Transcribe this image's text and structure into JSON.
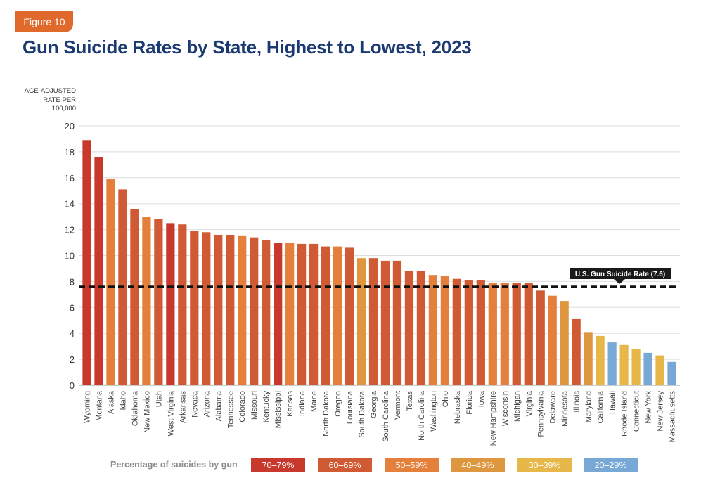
{
  "figure_label": "Figure 10",
  "chart_data": {
    "type": "bar",
    "title": "Gun Suicide Rates by State, Highest to Lowest, 2023",
    "ylabel_lines": [
      "AGE-ADJUSTED",
      "RATE PER",
      "100,000"
    ],
    "xlabel": "",
    "ylim": [
      0,
      20
    ],
    "yticks": [
      0,
      2,
      4,
      6,
      8,
      10,
      12,
      14,
      16,
      18,
      20
    ],
    "grid": true,
    "reference_line": {
      "label": "U.S. Gun Suicide Rate (7.6)",
      "value": 7.6
    },
    "categories": [
      "Wyoming",
      "Montana",
      "Alaska",
      "Idaho",
      "Oklahoma",
      "New Mexico",
      "Utah",
      "West Virginia",
      "Arkansas",
      "Nevada",
      "Arizona",
      "Alabama",
      "Tennessee",
      "Colorado",
      "Missouri",
      "Kentucky",
      "Mississippi",
      "Kansas",
      "Indiana",
      "Maine",
      "North Dakota",
      "Oregon",
      "Louisiana",
      "South Dakota",
      "Georgia",
      "South Carolina",
      "Vermont",
      "Texas",
      "North Carolina",
      "Washington",
      "Ohio",
      "Nebraska",
      "Florida",
      "Iowa",
      "New Hampshire",
      "Wisconsin",
      "Michigan",
      "Virginia",
      "Pennsylvania",
      "Delaware",
      "Minnesota",
      "Illinois",
      "Maryland",
      "California",
      "Hawaii",
      "Rhode Island",
      "Connecticut",
      "New York",
      "New Jersey",
      "Massachusetts"
    ],
    "values": [
      18.9,
      17.6,
      15.9,
      15.1,
      13.6,
      13.0,
      12.8,
      12.5,
      12.4,
      11.9,
      11.8,
      11.6,
      11.6,
      11.5,
      11.4,
      11.2,
      11.0,
      11.0,
      10.9,
      10.9,
      10.7,
      10.7,
      10.6,
      9.8,
      9.8,
      9.6,
      9.6,
      8.8,
      8.8,
      8.5,
      8.4,
      8.2,
      8.1,
      8.1,
      7.9,
      7.9,
      7.9,
      7.9,
      7.3,
      6.9,
      6.5,
      5.1,
      4.1,
      3.8,
      3.3,
      3.1,
      2.8,
      2.5,
      2.3,
      1.8
    ],
    "groups": [
      0,
      0,
      2,
      1,
      1,
      2,
      1,
      0,
      1,
      1,
      1,
      1,
      1,
      2,
      1,
      1,
      0,
      2,
      1,
      1,
      1,
      2,
      1,
      3,
      1,
      1,
      1,
      1,
      1,
      2,
      2,
      1,
      1,
      1,
      2,
      2,
      1,
      1,
      1,
      2,
      3,
      1,
      3,
      4,
      5,
      4,
      4,
      5,
      4,
      5
    ],
    "legend_title": "Percentage of suicides by gun",
    "legend": [
      {
        "label": "70–79%",
        "color": "#c8382c"
      },
      {
        "label": "60–69%",
        "color": "#cf5a33"
      },
      {
        "label": "50–59%",
        "color": "#e4803c"
      },
      {
        "label": "40–49%",
        "color": "#df973f"
      },
      {
        "label": "30–39%",
        "color": "#e8b74a"
      },
      {
        "label": "20–29%",
        "color": "#77a8d6"
      }
    ]
  }
}
